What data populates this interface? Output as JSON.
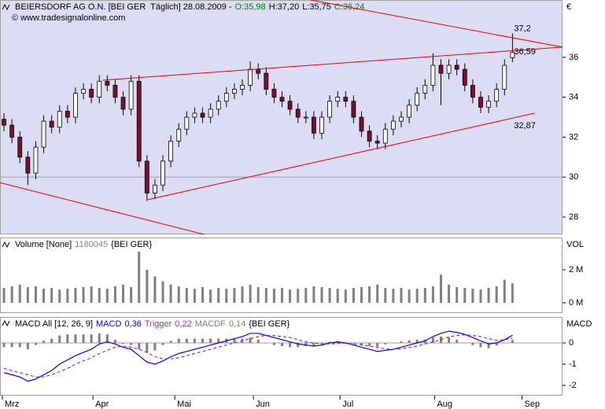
{
  "chart_data": [
    {
      "type": "candlestick",
      "header": [
        {
          "text": "BEIERSDORF AG O.N. [BEI GER  Täglich] 28.08.2009 -",
          "color": "#000000"
        },
        {
          "text": "O:35,98",
          "color": "#008000"
        },
        {
          "text": "H:37,20",
          "color": "#000000"
        },
        {
          "text": "L:35,75",
          "color": "#000000"
        },
        {
          "text": "C:36,24",
          "color": "#008000"
        }
      ],
      "source": "© www.tradesignalonline.com",
      "axis_label": "€",
      "background": "#dcdcf5",
      "up_color": "#ffffff",
      "down_color": "#7a1030",
      "xlim": [
        -0.5,
        70.3
      ],
      "ylim": [
        27.13,
        38.87
      ],
      "yticks": [
        28,
        30,
        32,
        34,
        36
      ],
      "hline": 30,
      "open": [
        32.9,
        32.6,
        32.0,
        31.0,
        30.2,
        31.5,
        32.8,
        32.5,
        33.3,
        33.0,
        34.2,
        34.4,
        34.0,
        34.8,
        34.6,
        34.0,
        33.4,
        34.8,
        30.8,
        29.2,
        29.6,
        30.8,
        31.8,
        32.4,
        33.0,
        33.2,
        33.0,
        33.4,
        33.8,
        34.2,
        34.4,
        34.6,
        35.4,
        35.2,
        34.4,
        34.0,
        33.8,
        33.4,
        33.0,
        33.0,
        32.2,
        33.0,
        33.8,
        34.0,
        33.8,
        33.0,
        32.3,
        31.8,
        31.7,
        32.4,
        32.8,
        33.0,
        33.6,
        34.2,
        34.6,
        35.6,
        35.2,
        35.6,
        35.4,
        34.6,
        34.0,
        33.5,
        33.8,
        34.4,
        35.98
      ],
      "high": [
        33.2,
        32.9,
        32.3,
        31.3,
        31.8,
        33.1,
        33.1,
        33.6,
        33.6,
        34.5,
        34.7,
        34.7,
        35.1,
        35.1,
        34.9,
        34.3,
        35.1,
        35.1,
        31.1,
        29.9,
        31.1,
        32.1,
        32.7,
        33.3,
        33.5,
        33.5,
        33.7,
        34.1,
        34.5,
        34.7,
        34.9,
        35.8,
        35.7,
        35.5,
        34.7,
        34.3,
        34.1,
        33.7,
        33.3,
        33.3,
        33.3,
        34.1,
        34.3,
        34.3,
        34.1,
        33.3,
        32.6,
        32.1,
        32.7,
        33.1,
        33.3,
        33.9,
        34.5,
        34.9,
        36.2,
        35.9,
        35.9,
        35.9,
        35.7,
        34.9,
        34.3,
        34.1,
        34.7,
        35.9,
        37.2
      ],
      "low": [
        32.3,
        31.7,
        30.7,
        29.6,
        29.9,
        31.2,
        32.2,
        32.2,
        32.7,
        32.7,
        33.9,
        33.7,
        33.7,
        34.3,
        33.7,
        33.1,
        33.1,
        30.5,
        28.8,
        28.9,
        29.3,
        30.5,
        31.5,
        32.1,
        32.7,
        32.7,
        32.7,
        33.1,
        33.5,
        33.9,
        34.1,
        34.3,
        34.9,
        34.1,
        33.7,
        33.5,
        33.1,
        32.7,
        32.7,
        31.9,
        31.9,
        32.7,
        33.5,
        33.5,
        32.7,
        32.0,
        31.5,
        31.4,
        31.4,
        32.1,
        32.5,
        32.7,
        33.3,
        33.9,
        34.3,
        33.6,
        34.9,
        35.1,
        34.3,
        33.7,
        33.2,
        33.2,
        33.5,
        34.1,
        35.75
      ],
      "close": [
        32.6,
        32.0,
        31.0,
        30.2,
        31.5,
        32.8,
        32.5,
        33.3,
        33.0,
        34.2,
        34.4,
        34.0,
        34.8,
        34.6,
        34.0,
        33.4,
        34.8,
        30.8,
        29.2,
        29.6,
        30.8,
        31.8,
        32.4,
        33.0,
        33.2,
        33.0,
        33.4,
        33.8,
        34.2,
        34.4,
        34.6,
        35.4,
        35.2,
        34.4,
        34.0,
        33.8,
        33.4,
        33.0,
        33.0,
        32.2,
        33.0,
        33.8,
        34.0,
        33.8,
        33.0,
        32.3,
        31.8,
        31.7,
        32.4,
        32.8,
        33.0,
        33.6,
        34.2,
        34.6,
        35.6,
        35.2,
        35.6,
        35.4,
        34.6,
        34.0,
        33.5,
        33.8,
        34.4,
        35.6,
        36.24
      ],
      "trendlines": [
        {
          "x": [
            38.6,
            70.3
          ],
          "y": [
            38.87,
            36.51
          ]
        },
        {
          "x": [
            -0.5,
            25.2
          ],
          "y": [
            29.72,
            27.13
          ]
        },
        {
          "x": [
            12.4,
            70.3
          ],
          "y": [
            34.85,
            36.51
          ]
        },
        {
          "x": [
            18.1,
            66.8
          ],
          "y": [
            28.87,
            33.2
          ]
        }
      ],
      "trend_color": "#e00000",
      "annotations": [
        {
          "label": "37,2",
          "value": 37.2
        },
        {
          "label": "36,59",
          "value": 36.59
        },
        {
          "label": "32,87",
          "value": 32.87
        }
      ]
    },
    {
      "type": "bar",
      "header": [
        {
          "text": "Volume [None]",
          "color": "#000000"
        },
        {
          "text": "1180045",
          "color": "#808080"
        },
        {
          "text": "{BEI GER}",
          "color": "#000000"
        }
      ],
      "axis_label": "VOL",
      "background": "#ffffff",
      "color": "#808080",
      "xlim": [
        -0.5,
        70.3
      ],
      "ylim": [
        -620000,
        3950000
      ],
      "yticks": [
        {
          "value": 0,
          "label": "0 M"
        },
        {
          "value": 2000000,
          "label": "2 M"
        }
      ],
      "values": [
        900000,
        1000000,
        1100000,
        950000,
        1000000,
        850000,
        900000,
        800000,
        850000,
        900000,
        950000,
        1000000,
        900000,
        850000,
        1000000,
        1100000,
        950000,
        3100000,
        2000000,
        1600000,
        1300000,
        1100000,
        1000000,
        900000,
        850000,
        950000,
        800000,
        900000,
        850000,
        900000,
        1000000,
        1100000,
        950000,
        900000,
        850000,
        900000,
        800000,
        850000,
        900000,
        1000000,
        950000,
        900000,
        850000,
        800000,
        900000,
        950000,
        1000000,
        1100000,
        900000,
        850000,
        900000,
        800000,
        850000,
        900000,
        1000000,
        1700000,
        1100000,
        950000,
        900000,
        850000,
        800000,
        900000,
        1000000,
        1400000,
        1180045
      ]
    },
    {
      "type": "macd",
      "header": [
        {
          "text": "MACD All [12, 26, 9]",
          "color": "#000000"
        }
      ],
      "header_tail": [
        {
          "text": "{BEI GER}",
          "color": "#000000"
        }
      ],
      "axis_label": "MACD",
      "background": "#ffffff",
      "xlim": [
        -0.5,
        70.3
      ],
      "ylim": [
        -2.48,
        1.22
      ],
      "yticks": [
        -2,
        -1,
        0
      ],
      "hline": 0,
      "series": [
        {
          "name": "MACD",
          "value_label": "0,36",
          "color": "#0000ff",
          "style": "line",
          "values": [
            -1.4,
            -1.5,
            -1.6,
            -1.8,
            -1.7,
            -1.5,
            -1.3,
            -1.0,
            -0.8,
            -0.6,
            -0.45,
            -0.3,
            -0.05,
            0.05,
            -0.05,
            -0.2,
            -0.3,
            -0.6,
            -0.9,
            -1.0,
            -0.85,
            -0.65,
            -0.5,
            -0.4,
            -0.3,
            -0.2,
            -0.1,
            0.0,
            0.1,
            0.2,
            0.3,
            0.45,
            0.45,
            0.35,
            0.25,
            0.15,
            0.05,
            -0.05,
            -0.1,
            -0.15,
            -0.1,
            0.0,
            0.05,
            0.0,
            -0.1,
            -0.2,
            -0.3,
            -0.4,
            -0.35,
            -0.3,
            -0.2,
            -0.1,
            0.0,
            0.1,
            0.3,
            0.45,
            0.55,
            0.5,
            0.4,
            0.25,
            0.1,
            -0.05,
            0.0,
            0.15,
            0.36
          ]
        },
        {
          "name": "Trigger",
          "value_label": "0,22",
          "color": "#a0309c",
          "style": "dash",
          "values": [
            -1.2,
            -1.3,
            -1.4,
            -1.5,
            -1.6,
            -1.6,
            -1.5,
            -1.35,
            -1.2,
            -1.0,
            -0.85,
            -0.7,
            -0.5,
            -0.35,
            -0.2,
            -0.15,
            -0.2,
            -0.3,
            -0.45,
            -0.65,
            -0.75,
            -0.75,
            -0.7,
            -0.6,
            -0.5,
            -0.4,
            -0.3,
            -0.2,
            -0.1,
            0.0,
            0.1,
            0.2,
            0.3,
            0.35,
            0.35,
            0.3,
            0.25,
            0.15,
            0.05,
            0.0,
            -0.05,
            -0.05,
            -0.03,
            -0.02,
            -0.05,
            -0.1,
            -0.15,
            -0.22,
            -0.28,
            -0.3,
            -0.28,
            -0.22,
            -0.15,
            -0.05,
            0.05,
            0.15,
            0.28,
            0.35,
            0.38,
            0.35,
            0.3,
            0.2,
            0.12,
            0.15,
            0.22
          ]
        },
        {
          "name": "MACDF",
          "value_label": "0,14",
          "color": "#808080",
          "style": "bar",
          "values": [
            -0.2,
            -0.2,
            -0.2,
            -0.3,
            -0.1,
            0.1,
            0.2,
            0.35,
            0.4,
            0.4,
            0.4,
            0.4,
            0.45,
            0.4,
            0.15,
            -0.05,
            -0.1,
            -0.3,
            -0.45,
            -0.35,
            -0.1,
            0.1,
            0.2,
            0.2,
            0.2,
            0.2,
            0.2,
            0.2,
            0.2,
            0.2,
            0.2,
            0.25,
            0.15,
            0,
            -0.1,
            -0.15,
            -0.2,
            -0.2,
            -0.15,
            -0.15,
            -0.05,
            0.05,
            0.08,
            0.02,
            -0.05,
            -0.1,
            -0.15,
            -0.18,
            -0.07,
            0,
            0.08,
            0.12,
            0.15,
            0.15,
            0.25,
            0.3,
            0.27,
            0.15,
            0.02,
            -0.1,
            -0.2,
            -0.25,
            -0.12,
            0,
            0.14
          ]
        }
      ],
      "xticks": [
        {
          "value": -0.2,
          "label": "Mrz"
        },
        {
          "value": 11.2,
          "label": "Apr"
        },
        {
          "value": 21.5,
          "label": "Mai"
        },
        {
          "value": 31.4,
          "label": "Jun"
        },
        {
          "value": 42.3,
          "label": "Jul"
        },
        {
          "value": 54.2,
          "label": "Aug"
        },
        {
          "value": 65.2,
          "label": "Sep"
        }
      ]
    }
  ]
}
